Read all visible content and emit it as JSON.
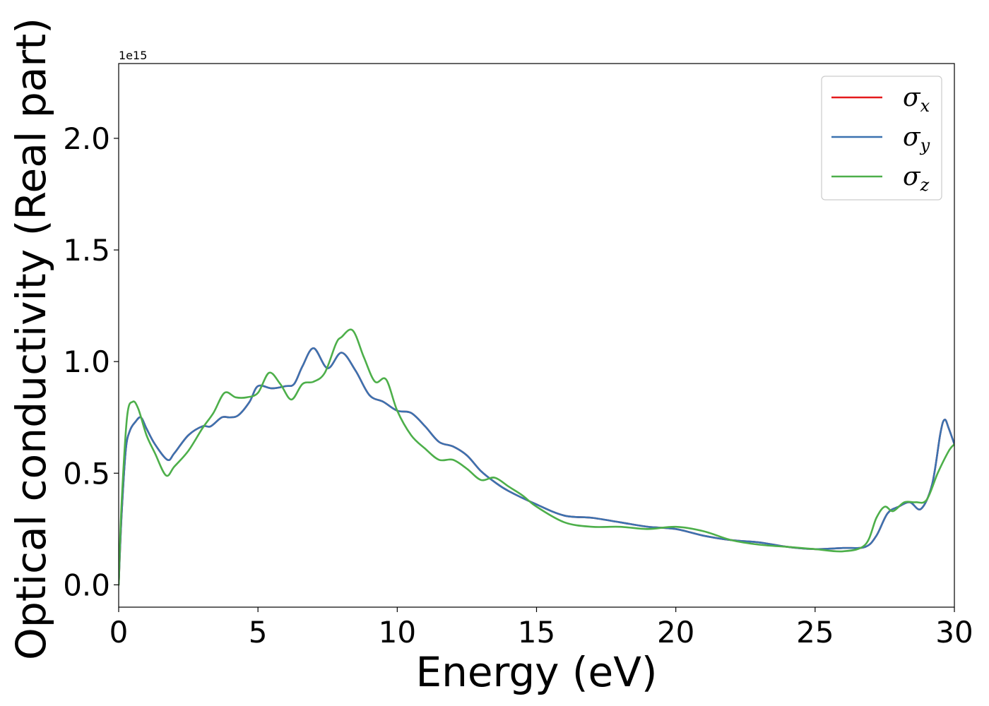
{
  "chart_data": {
    "type": "line",
    "xlabel": "Energy (eV)",
    "ylabel": "Optical conductivity (Real part)",
    "y_offset_text": "1e15",
    "xlim": [
      0,
      30
    ],
    "ylim": [
      -0.1,
      2.335
    ],
    "xticks": [
      0,
      5,
      10,
      15,
      20,
      25,
      30
    ],
    "xtick_labels": [
      "0",
      "5",
      "10",
      "15",
      "20",
      "25",
      "30"
    ],
    "yticks": [
      0.0,
      0.5,
      1.0,
      1.5,
      2.0
    ],
    "ytick_labels": [
      "0.0",
      "0.5",
      "1.0",
      "1.5",
      "2.0"
    ],
    "grid": false,
    "legend_position": "top-right",
    "series": [
      {
        "name": "σ_x",
        "legend_base": "σ",
        "legend_sub": "x",
        "color": "#e41a1c",
        "x": [
          0,
          0.1,
          0.25,
          0.4,
          0.6,
          0.8,
          1.0,
          1.3,
          1.75,
          2.0,
          2.5,
          3.0,
          3.3,
          3.7,
          4.0,
          4.3,
          4.7,
          5.0,
          5.5,
          6.0,
          6.3,
          6.6,
          7.0,
          7.5,
          8.0,
          8.5,
          9.0,
          9.5,
          10.0,
          10.5,
          11.0,
          11.5,
          12.0,
          12.5,
          13.0,
          13.5,
          14.0,
          15.0,
          16.0,
          17.0,
          18.0,
          19.0,
          20.0,
          21.0,
          22.0,
          23.0,
          24.0,
          25.0,
          26.0,
          26.8,
          27.2,
          27.6,
          28.0,
          28.4,
          28.8,
          29.2,
          29.5,
          29.65,
          29.8,
          30.0
        ],
        "y": [
          0.0,
          0.3,
          0.6,
          0.69,
          0.73,
          0.75,
          0.7,
          0.63,
          0.56,
          0.59,
          0.67,
          0.71,
          0.71,
          0.75,
          0.75,
          0.76,
          0.82,
          0.89,
          0.88,
          0.89,
          0.9,
          0.98,
          1.06,
          0.97,
          1.04,
          0.96,
          0.85,
          0.82,
          0.78,
          0.77,
          0.71,
          0.64,
          0.62,
          0.58,
          0.51,
          0.46,
          0.42,
          0.36,
          0.31,
          0.3,
          0.28,
          0.26,
          0.25,
          0.22,
          0.2,
          0.19,
          0.17,
          0.16,
          0.165,
          0.17,
          0.22,
          0.32,
          0.35,
          0.37,
          0.34,
          0.45,
          0.68,
          0.74,
          0.7,
          0.63
        ]
      },
      {
        "name": "σ_y",
        "legend_base": "σ",
        "legend_sub": "y",
        "color": "#3b72b0",
        "x": [
          0,
          0.1,
          0.25,
          0.4,
          0.6,
          0.8,
          1.0,
          1.3,
          1.75,
          2.0,
          2.5,
          3.0,
          3.3,
          3.7,
          4.0,
          4.3,
          4.7,
          5.0,
          5.5,
          6.0,
          6.3,
          6.6,
          7.0,
          7.5,
          8.0,
          8.5,
          9.0,
          9.5,
          10.0,
          10.5,
          11.0,
          11.5,
          12.0,
          12.5,
          13.0,
          13.5,
          14.0,
          15.0,
          16.0,
          17.0,
          18.0,
          19.0,
          20.0,
          21.0,
          22.0,
          23.0,
          24.0,
          25.0,
          26.0,
          26.8,
          27.2,
          27.6,
          28.0,
          28.4,
          28.8,
          29.2,
          29.5,
          29.65,
          29.8,
          30.0
        ],
        "y": [
          0.0,
          0.3,
          0.6,
          0.69,
          0.73,
          0.75,
          0.7,
          0.63,
          0.56,
          0.59,
          0.67,
          0.71,
          0.71,
          0.75,
          0.75,
          0.76,
          0.82,
          0.89,
          0.88,
          0.89,
          0.9,
          0.98,
          1.06,
          0.97,
          1.04,
          0.96,
          0.85,
          0.82,
          0.78,
          0.77,
          0.71,
          0.64,
          0.62,
          0.58,
          0.51,
          0.46,
          0.42,
          0.36,
          0.31,
          0.3,
          0.28,
          0.26,
          0.25,
          0.22,
          0.2,
          0.19,
          0.17,
          0.16,
          0.165,
          0.17,
          0.22,
          0.32,
          0.35,
          0.37,
          0.34,
          0.45,
          0.68,
          0.74,
          0.7,
          0.63
        ]
      },
      {
        "name": "σ_z",
        "legend_base": "σ",
        "legend_sub": "z",
        "color": "#4daf4a",
        "x": [
          0,
          0.1,
          0.3,
          0.5,
          0.7,
          1.0,
          1.3,
          1.7,
          2.0,
          2.5,
          3.0,
          3.4,
          3.8,
          4.2,
          4.6,
          5.0,
          5.4,
          5.8,
          6.2,
          6.6,
          7.0,
          7.4,
          7.8,
          8.0,
          8.4,
          8.8,
          9.2,
          9.6,
          10.0,
          10.5,
          11.0,
          11.5,
          12.0,
          12.5,
          13.0,
          13.5,
          14.0,
          14.5,
          15.0,
          16.0,
          17.0,
          18.0,
          19.0,
          20.0,
          21.0,
          22.0,
          23.0,
          24.0,
          25.0,
          26.0,
          26.8,
          27.2,
          27.5,
          27.8,
          28.2,
          28.6,
          29.0,
          29.4,
          29.8,
          30.0
        ],
        "y": [
          0.0,
          0.35,
          0.75,
          0.82,
          0.79,
          0.67,
          0.59,
          0.49,
          0.53,
          0.6,
          0.7,
          0.77,
          0.86,
          0.84,
          0.84,
          0.86,
          0.95,
          0.9,
          0.83,
          0.9,
          0.91,
          0.95,
          1.08,
          1.11,
          1.14,
          1.02,
          0.91,
          0.92,
          0.78,
          0.67,
          0.61,
          0.56,
          0.56,
          0.52,
          0.47,
          0.48,
          0.44,
          0.4,
          0.35,
          0.28,
          0.26,
          0.26,
          0.25,
          0.26,
          0.24,
          0.2,
          0.18,
          0.17,
          0.16,
          0.15,
          0.18,
          0.3,
          0.35,
          0.33,
          0.37,
          0.37,
          0.38,
          0.5,
          0.6,
          0.63
        ]
      }
    ]
  }
}
